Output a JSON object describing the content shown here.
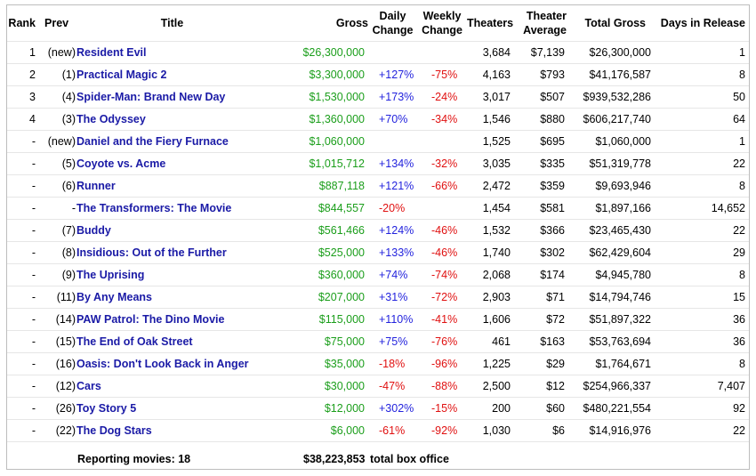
{
  "columns": {
    "rank": "Rank",
    "prev": "Prev",
    "title": "Title",
    "gross": "Gross",
    "daily1": "Daily",
    "daily2": "Change",
    "weekly1": "Weekly",
    "weekly2": "Change",
    "theaters": "Theaters",
    "avg1": "Theater",
    "avg2": "Average",
    "total": "Total Gross",
    "days": "Days in Release"
  },
  "rows": [
    {
      "rank": "1",
      "prev": "(new)",
      "title": "Resident Evil",
      "gross": "$26,300,000",
      "daily": "",
      "weekly": "",
      "theaters": "3,684",
      "avg": "$7,139",
      "total": "$26,300,000",
      "days": "1"
    },
    {
      "rank": "2",
      "prev": "(1)",
      "title": "Practical Magic 2",
      "gross": "$3,300,000",
      "daily": "+127%",
      "weekly": "-75%",
      "theaters": "4,163",
      "avg": "$793",
      "total": "$41,176,587",
      "days": "8"
    },
    {
      "rank": "3",
      "prev": "(4)",
      "title": "Spider-Man: Brand New Day",
      "gross": "$1,530,000",
      "daily": "+173%",
      "weekly": "-24%",
      "theaters": "3,017",
      "avg": "$507",
      "total": "$939,532,286",
      "days": "50"
    },
    {
      "rank": "4",
      "prev": "(3)",
      "title": "The Odyssey",
      "gross": "$1,360,000",
      "daily": "+70%",
      "weekly": "-34%",
      "theaters": "1,546",
      "avg": "$880",
      "total": "$606,217,740",
      "days": "64"
    },
    {
      "rank": "-",
      "prev": "(new)",
      "title": "Daniel and the Fiery Furnace",
      "gross": "$1,060,000",
      "daily": "",
      "weekly": "",
      "theaters": "1,525",
      "avg": "$695",
      "total": "$1,060,000",
      "days": "1"
    },
    {
      "rank": "-",
      "prev": "(5)",
      "title": "Coyote vs. Acme",
      "gross": "$1,015,712",
      "daily": "+134%",
      "weekly": "-32%",
      "theaters": "3,035",
      "avg": "$335",
      "total": "$51,319,778",
      "days": "22"
    },
    {
      "rank": "-",
      "prev": "(6)",
      "title": "Runner",
      "gross": "$887,118",
      "daily": "+121%",
      "weekly": "-66%",
      "theaters": "2,472",
      "avg": "$359",
      "total": "$9,693,946",
      "days": "8"
    },
    {
      "rank": "-",
      "prev": "-",
      "title": "The Transformers: The Movie",
      "gross": "$844,557",
      "daily": "-20%",
      "weekly": "",
      "theaters": "1,454",
      "avg": "$581",
      "total": "$1,897,166",
      "days": "14,652"
    },
    {
      "rank": "-",
      "prev": "(7)",
      "title": "Buddy",
      "gross": "$561,466",
      "daily": "+124%",
      "weekly": "-46%",
      "theaters": "1,532",
      "avg": "$366",
      "total": "$23,465,430",
      "days": "22"
    },
    {
      "rank": "-",
      "prev": "(8)",
      "title": "Insidious: Out of the Further",
      "gross": "$525,000",
      "daily": "+133%",
      "weekly": "-46%",
      "theaters": "1,740",
      "avg": "$302",
      "total": "$62,429,604",
      "days": "29"
    },
    {
      "rank": "-",
      "prev": "(9)",
      "title": "The Uprising",
      "gross": "$360,000",
      "daily": "+74%",
      "weekly": "-74%",
      "theaters": "2,068",
      "avg": "$174",
      "total": "$4,945,780",
      "days": "8"
    },
    {
      "rank": "-",
      "prev": "(11)",
      "title": "By Any Means",
      "gross": "$207,000",
      "daily": "+31%",
      "weekly": "-72%",
      "theaters": "2,903",
      "avg": "$71",
      "total": "$14,794,746",
      "days": "15"
    },
    {
      "rank": "-",
      "prev": "(14)",
      "title": "PAW Patrol: The Dino Movie",
      "gross": "$115,000",
      "daily": "+110%",
      "weekly": "-41%",
      "theaters": "1,606",
      "avg": "$72",
      "total": "$51,897,322",
      "days": "36"
    },
    {
      "rank": "-",
      "prev": "(15)",
      "title": "The End of Oak Street",
      "gross": "$75,000",
      "daily": "+75%",
      "weekly": "-76%",
      "theaters": "461",
      "avg": "$163",
      "total": "$53,763,694",
      "days": "36"
    },
    {
      "rank": "-",
      "prev": "(16)",
      "title": "Oasis: Don't Look Back in Anger",
      "gross": "$35,000",
      "daily": "-18%",
      "weekly": "-96%",
      "theaters": "1,225",
      "avg": "$29",
      "total": "$1,764,671",
      "days": "8"
    },
    {
      "rank": "-",
      "prev": "(12)",
      "title": "Cars",
      "gross": "$30,000",
      "daily": "-47%",
      "weekly": "-88%",
      "theaters": "2,500",
      "avg": "$12",
      "total": "$254,966,337",
      "days": "7,407"
    },
    {
      "rank": "-",
      "prev": "(26)",
      "title": "Toy Story 5",
      "gross": "$12,000",
      "daily": "+302%",
      "weekly": "-15%",
      "theaters": "200",
      "avg": "$60",
      "total": "$480,221,554",
      "days": "92"
    },
    {
      "rank": "-",
      "prev": "(22)",
      "title": "The Dog Stars",
      "gross": "$6,000",
      "daily": "-61%",
      "weekly": "-92%",
      "theaters": "1,030",
      "avg": "$6",
      "total": "$14,916,976",
      "days": "22"
    }
  ],
  "footer": {
    "reporting": "Reporting movies: 18",
    "total": "$38,223,853",
    "total_label": "total box office"
  },
  "colors": {
    "title": "#1a1aa6",
    "gross": "#1b9e1b",
    "positive": "#2323dd",
    "negative": "#e01010"
  }
}
